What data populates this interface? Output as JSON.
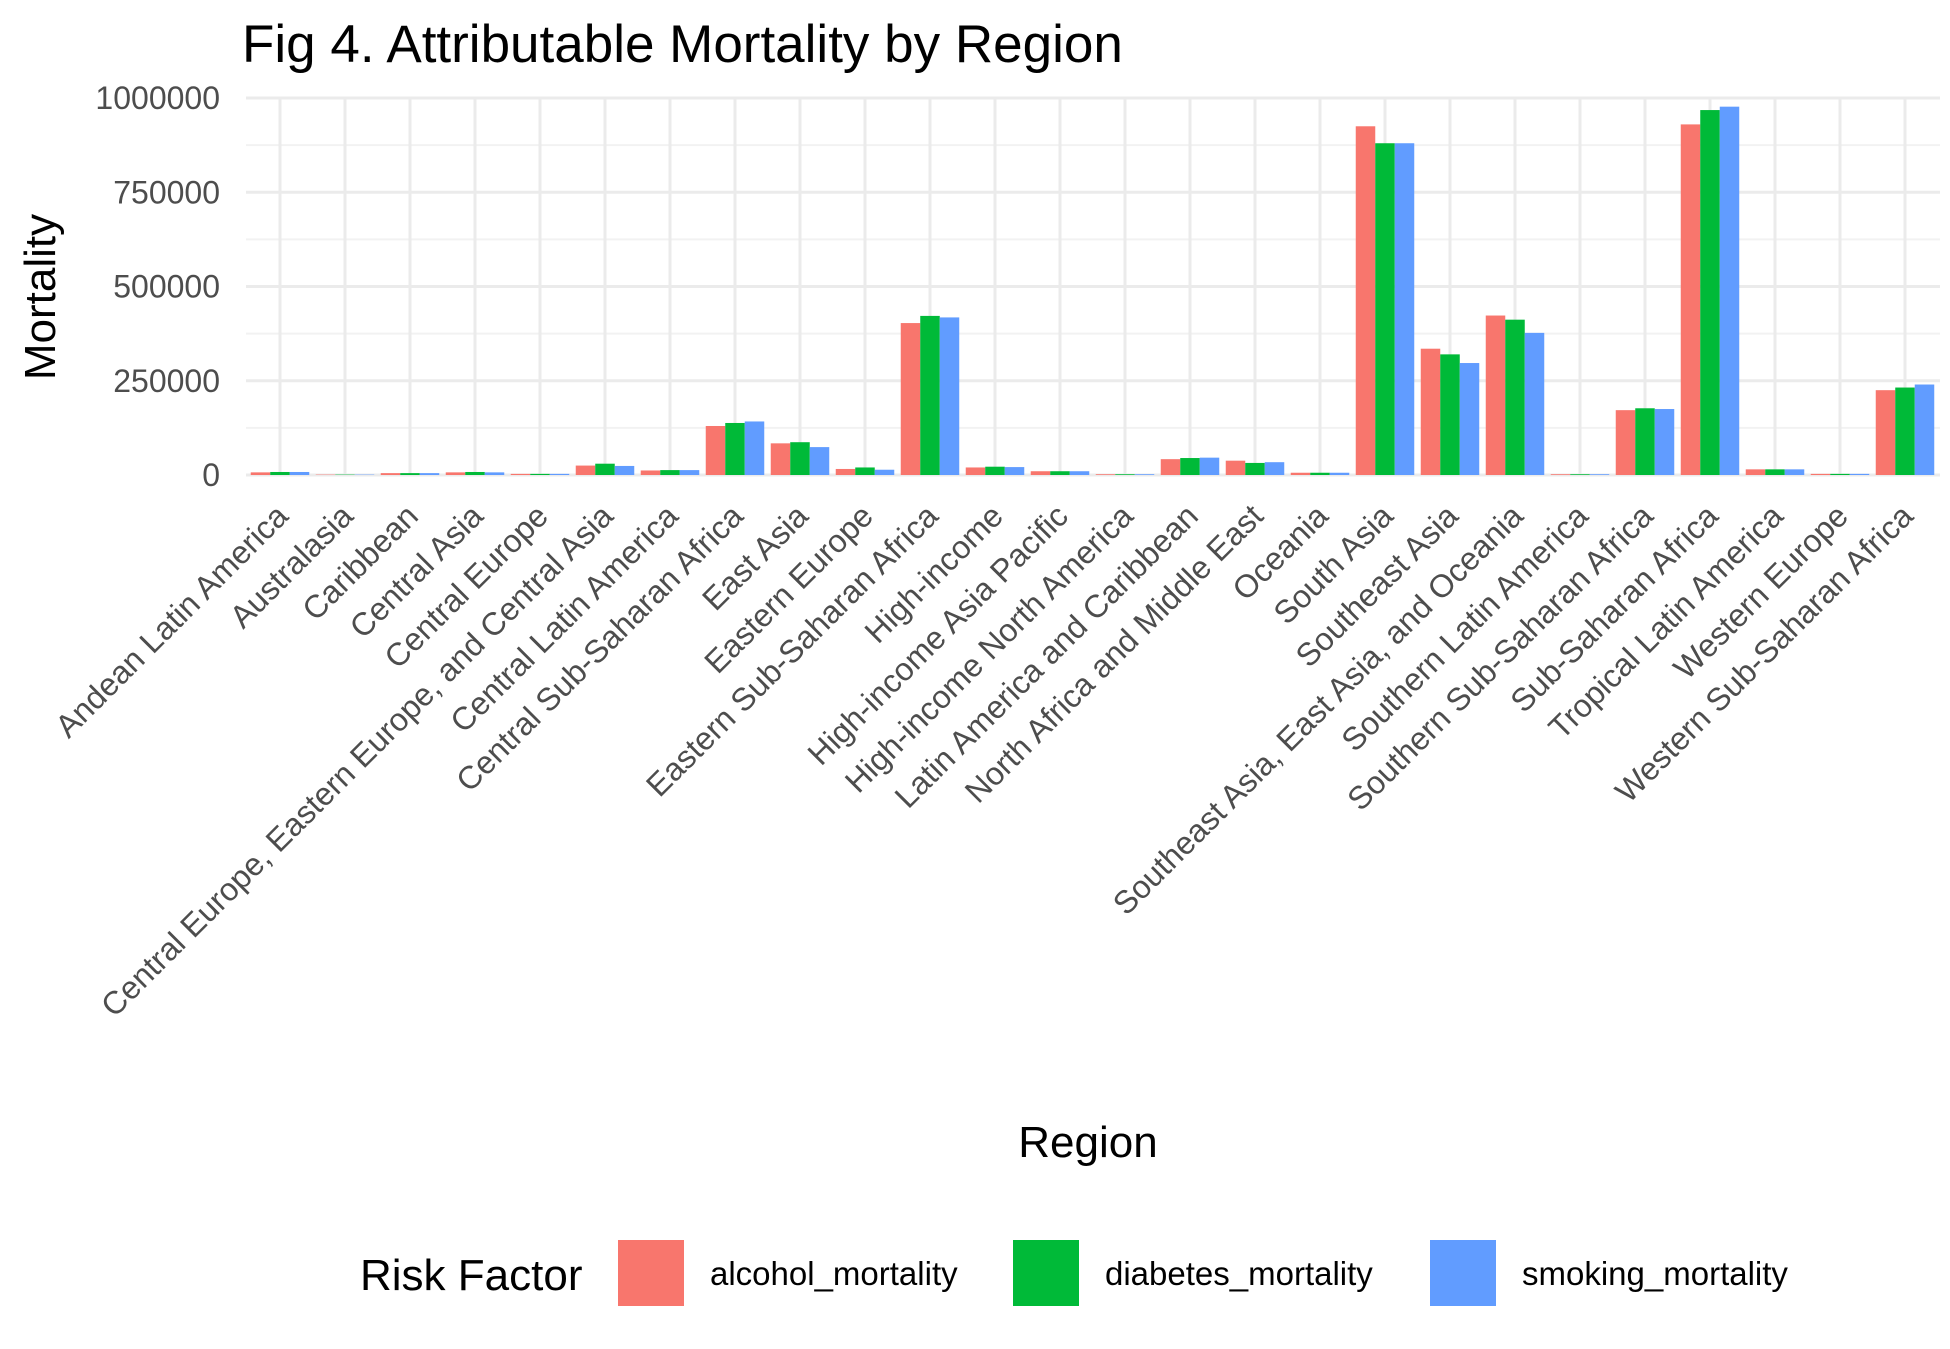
{
  "chart_data": {
    "type": "bar",
    "title": "Fig 4. Attributable Mortality by Region",
    "xlabel": "Region",
    "ylabel": "Mortality",
    "ylim": [
      0,
      1000000
    ],
    "yticks": [
      0,
      250000,
      500000,
      750000,
      1000000
    ],
    "ytick_labels": [
      "0",
      "250000",
      "500000",
      "750000",
      "1000000"
    ],
    "grid": true,
    "legend": {
      "title": "Risk Factor",
      "position": "bottom"
    },
    "categories": [
      "Andean Latin America",
      "Australasia",
      "Caribbean",
      "Central Asia",
      "Central Europe",
      "Central Europe, Eastern Europe, and Central Asia",
      "Central Latin America",
      "Central Sub-Saharan Africa",
      "East Asia",
      "Eastern Europe",
      "Eastern Sub-Saharan Africa",
      "High-income",
      "High-income Asia Pacific",
      "High-income North America",
      "Latin America and Caribbean",
      "North Africa and Middle East",
      "Oceania",
      "South Asia",
      "Southeast Asia",
      "Southeast Asia, East Asia, and Oceania",
      "Southern Latin America",
      "Southern Sub-Saharan Africa",
      "Sub-Saharan Africa",
      "Tropical Latin America",
      "Western Europe",
      "Western Sub-Saharan Africa"
    ],
    "series": [
      {
        "name": "alcohol_mortality",
        "color": "#F8766D",
        "values": [
          7000,
          1000,
          5000,
          7000,
          3000,
          25000,
          12000,
          130000,
          84000,
          16000,
          403000,
          20000,
          10000,
          2000,
          42000,
          38000,
          6000,
          925000,
          335000,
          423000,
          2000,
          172000,
          930000,
          15000,
          3000,
          225000
        ]
      },
      {
        "name": "diabetes_mortality",
        "color": "#00BA38",
        "values": [
          8000,
          1000,
          5000,
          8000,
          3000,
          30000,
          13000,
          138000,
          87000,
          20000,
          422000,
          22000,
          10000,
          2000,
          45000,
          32000,
          6000,
          880000,
          320000,
          412000,
          2000,
          177000,
          968000,
          15000,
          3000,
          232000
        ]
      },
      {
        "name": "smoking_mortality",
        "color": "#619CFF",
        "values": [
          8000,
          1000,
          5000,
          7000,
          3000,
          24000,
          13000,
          142000,
          74000,
          14000,
          418000,
          21000,
          10000,
          2000,
          46000,
          34000,
          6000,
          880000,
          297000,
          377000,
          2000,
          175000,
          977000,
          15000,
          3000,
          240000
        ]
      }
    ]
  }
}
